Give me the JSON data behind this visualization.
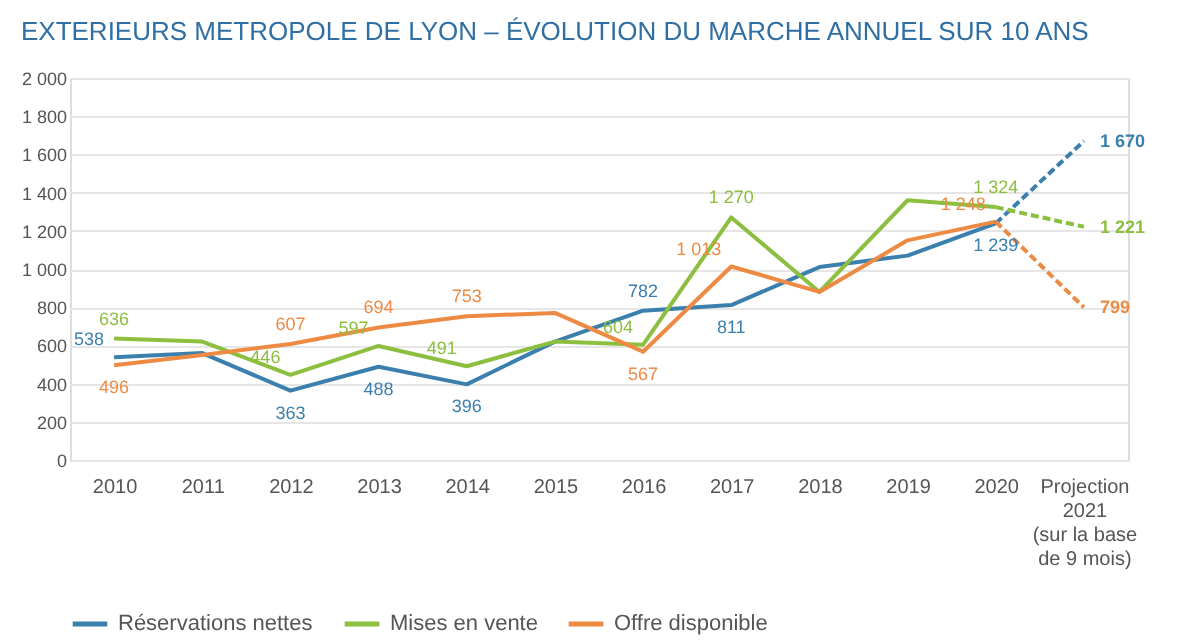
{
  "chart_data": {
    "type": "line",
    "title": "EXTERIEURS METROPOLE DE LYON – ÉVOLUTION DU MARCHE ANNUEL SUR 10 ANS",
    "categories": [
      "2010",
      "2011",
      "2012",
      "2013",
      "2014",
      "2015",
      "2016",
      "2017",
      "2018",
      "2019",
      "2020",
      "Projection\n2021\n(sur la base\nde 9 mois)"
    ],
    "ylim": [
      0,
      2000
    ],
    "yticks": [
      0,
      200,
      400,
      600,
      800,
      {
        "value": 1000,
        "label": "1 000"
      },
      {
        "value": 1200,
        "label": "1 200"
      },
      {
        "value": 1400,
        "label": "1 400"
      },
      {
        "value": 1600,
        "label": "1 600"
      },
      {
        "value": 1800,
        "label": "1 800"
      },
      {
        "value": 2000,
        "label": "2 000"
      }
    ],
    "grid": "y",
    "legend": "bottom",
    "marker": "none",
    "series": [
      {
        "name": "Réservations nettes",
        "color": "#3b7fae",
        "line_style": "solid",
        "values": [
          538,
          560,
          363,
          488,
          396,
          620,
          782,
          811,
          1010,
          1070,
          1239,
          null
        ],
        "value_labels": [
          "538",
          null,
          "363",
          "488",
          "396",
          null,
          "782",
          "811",
          null,
          null,
          "1 239",
          null
        ]
      },
      {
        "name": "Mises en vente",
        "color": "#8cbf3f",
        "line_style": "solid",
        "values": [
          636,
          620,
          446,
          597,
          491,
          620,
          604,
          1270,
          880,
          1360,
          1324,
          null
        ],
        "value_labels": [
          "636",
          null,
          "446",
          "597",
          "491",
          null,
          "604",
          "1 270",
          null,
          null,
          "1 324",
          null
        ]
      },
      {
        "name": "Offre disponible",
        "color": "#ed8a43",
        "line_style": "solid",
        "values": [
          496,
          550,
          607,
          694,
          753,
          770,
          567,
          1013,
          880,
          1150,
          1248,
          null
        ],
        "value_labels": [
          "496",
          null,
          "607",
          "694",
          "753",
          null,
          "567",
          "1 013",
          null,
          null,
          "1 248",
          null
        ]
      },
      {
        "color": "#3b7fae",
        "line_style": "dashed",
        "values": [
          null,
          null,
          null,
          null,
          null,
          null,
          null,
          null,
          null,
          null,
          1239,
          1670
        ],
        "value_labels": [
          null,
          null,
          null,
          null,
          null,
          null,
          null,
          null,
          null,
          null,
          null,
          "1 670"
        ]
      },
      {
        "color": "#8cbf3f",
        "line_style": "dashed",
        "values": [
          null,
          null,
          null,
          null,
          null,
          null,
          null,
          null,
          null,
          null,
          1324,
          1221
        ],
        "value_labels": [
          null,
          null,
          null,
          null,
          null,
          null,
          null,
          null,
          null,
          null,
          null,
          "1 221"
        ]
      },
      {
        "color": "#ed8a43",
        "line_style": "dashed",
        "values": [
          null,
          null,
          null,
          null,
          null,
          null,
          null,
          null,
          null,
          null,
          1248,
          799
        ],
        "value_labels": [
          null,
          null,
          null,
          null,
          null,
          null,
          null,
          null,
          null,
          null,
          null,
          "799"
        ]
      }
    ]
  }
}
